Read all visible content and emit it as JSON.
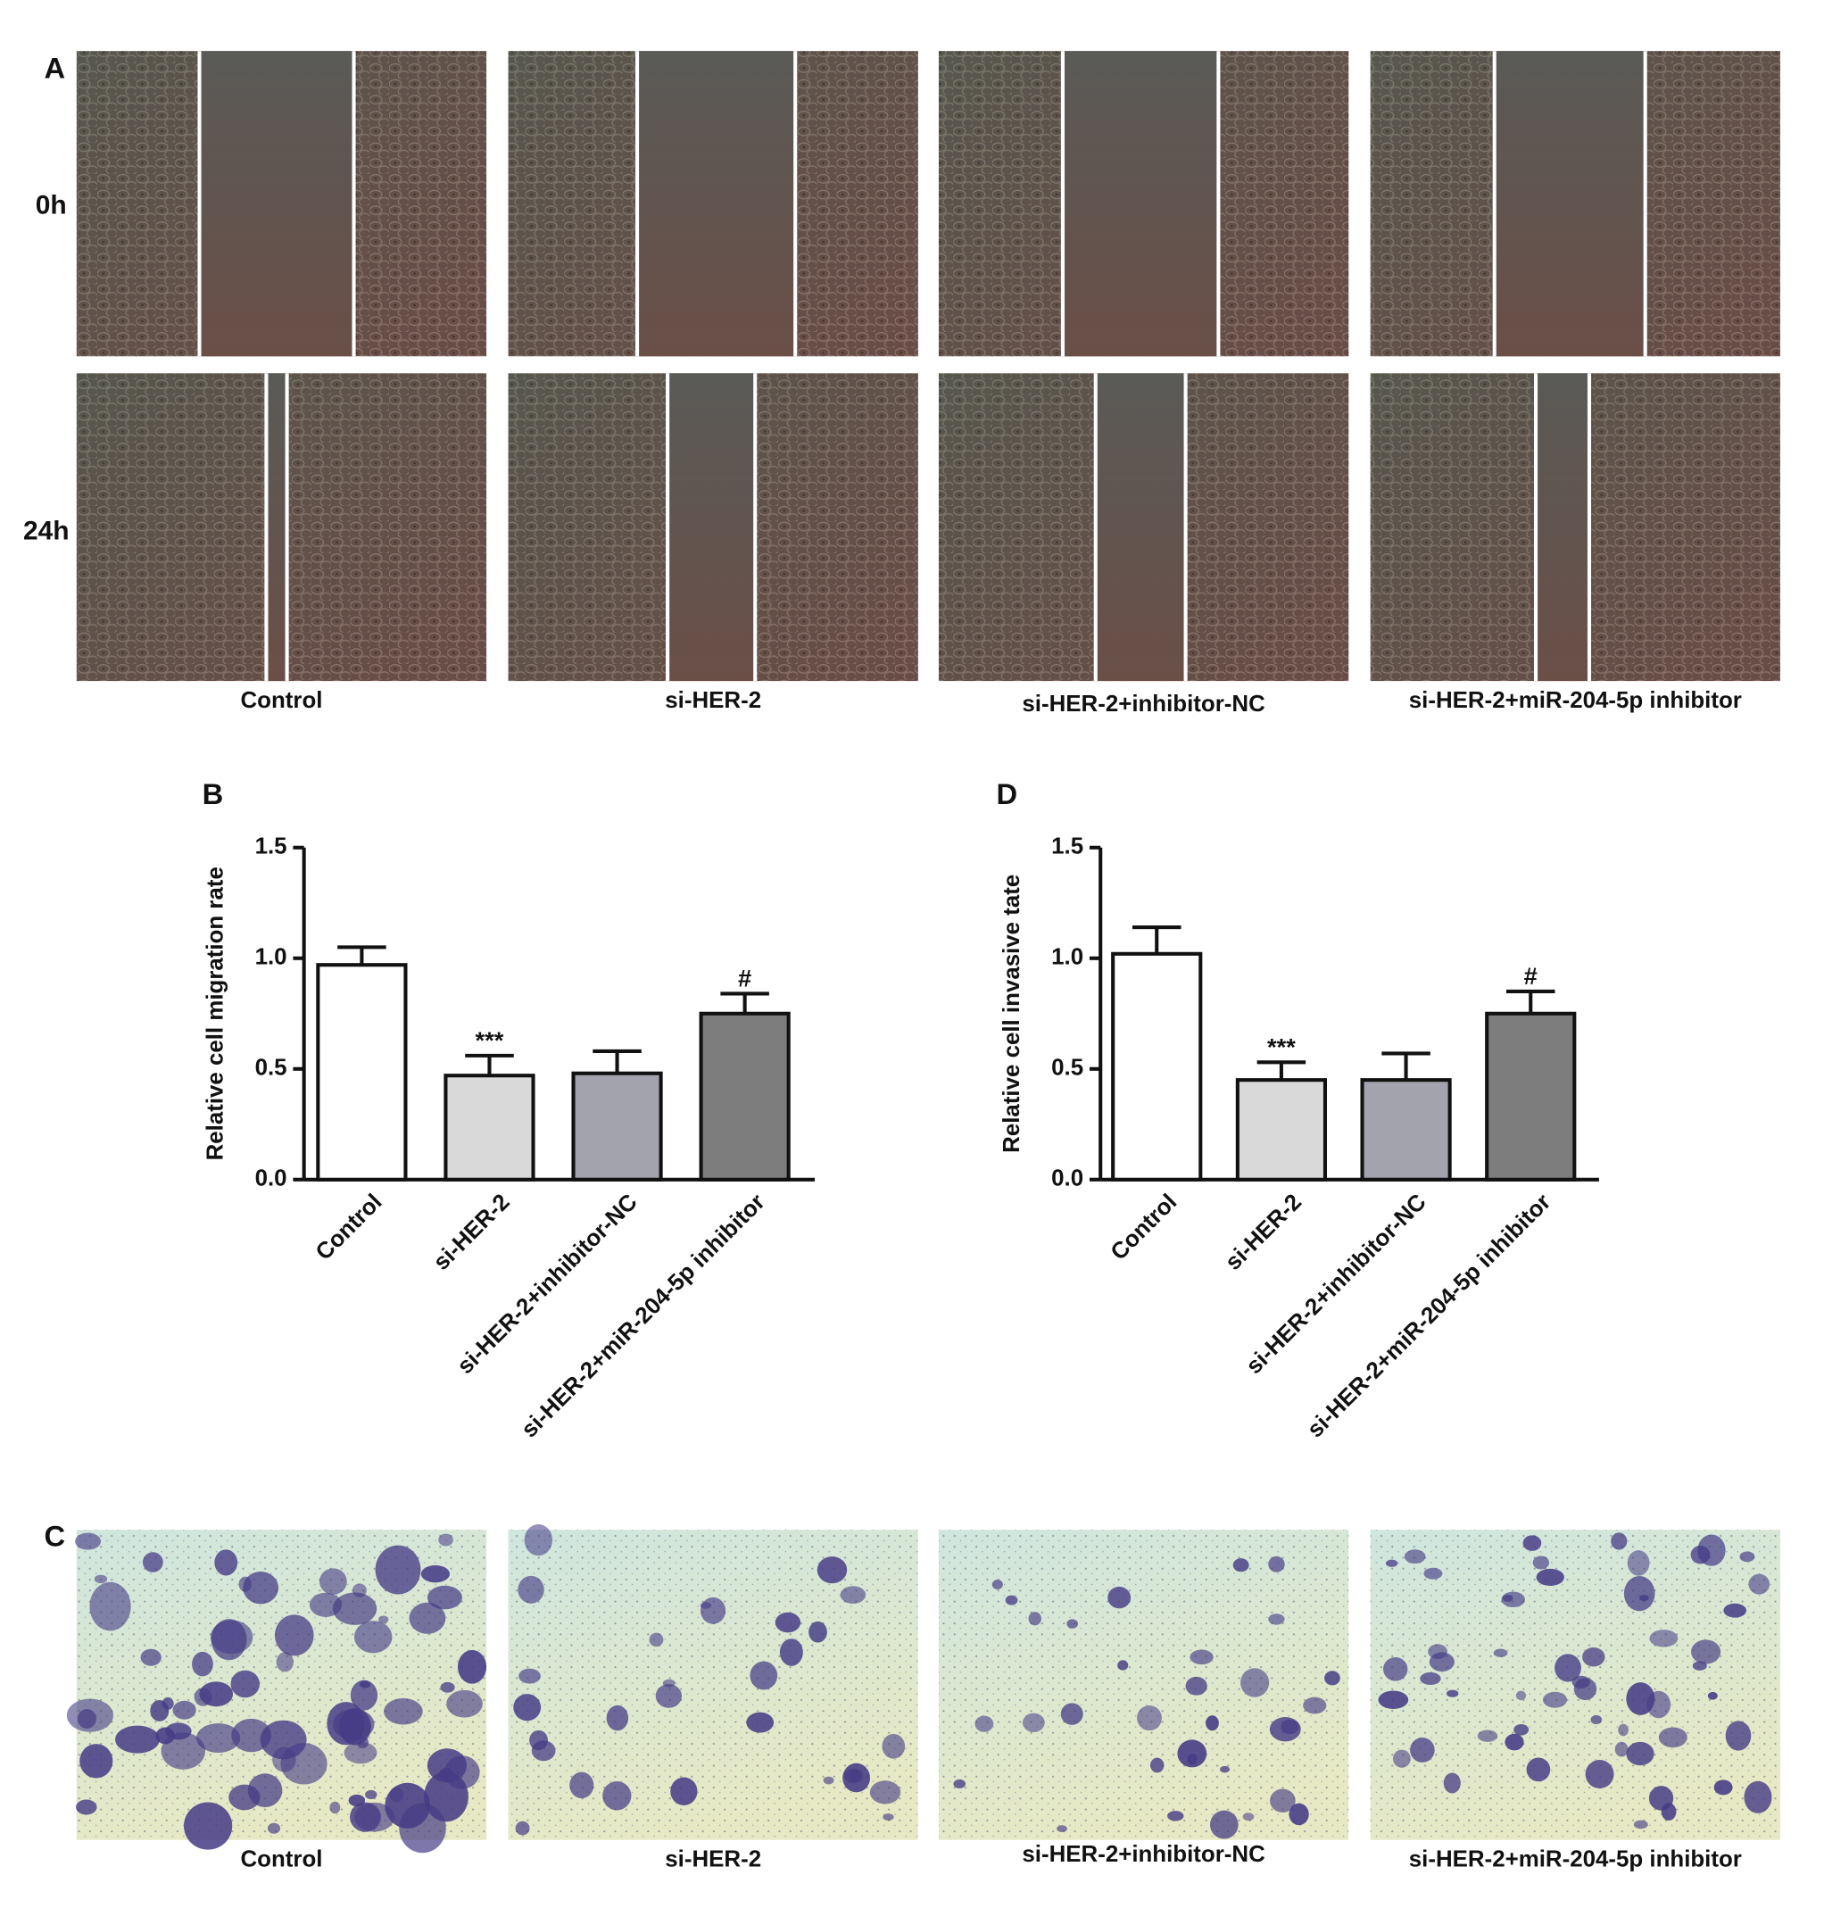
{
  "panel_a": {
    "label": "A",
    "rows": [
      "0h",
      "24h"
    ],
    "groups": [
      "Control",
      "si-HER-2",
      "si-HER-2+inhibitor-NC",
      "si-HER-2+miR-204-5p inhibitor"
    ]
  },
  "chart_data": [
    {
      "type": "bar",
      "panel_label": "B",
      "y_label": "Relative cell migration rate",
      "categories": [
        "Control",
        "si-HER-2",
        "si-HER-2+inhibitor-NC",
        "si-HER-2+miR-204-5p inhibitor"
      ],
      "values": [
        0.97,
        0.47,
        0.48,
        0.75
      ],
      "errors": [
        0.08,
        0.09,
        0.1,
        0.09
      ],
      "colors": [
        "#ffffff",
        "#d9d9d9",
        "#a3a3ad",
        "#7d7d7d"
      ],
      "significance": [
        null,
        "***",
        null,
        "#"
      ],
      "ylim": [
        0,
        1.5
      ],
      "yticks": [
        {
          "value": 0,
          "label": "0.0"
        },
        0.5,
        {
          "value": 1,
          "label": "1.0"
        },
        1.5
      ]
    },
    {
      "type": "bar",
      "panel_label": "D",
      "y_label": "Relative cell invasive tate",
      "categories": [
        "Control",
        "si-HER-2",
        "si-HER-2+inhibitor-NC",
        "si-HER-2+miR-204-5p inhibitor"
      ],
      "values": [
        1.02,
        0.45,
        0.45,
        0.75
      ],
      "errors": [
        0.12,
        0.08,
        0.12,
        0.1
      ],
      "colors": [
        "#ffffff",
        "#d9d9d9",
        "#a3a3ad",
        "#7d7d7d"
      ],
      "significance": [
        null,
        "***",
        null,
        "#"
      ],
      "ylim": [
        0,
        1.5
      ],
      "yticks": [
        {
          "value": 0,
          "label": "0.0"
        },
        0.5,
        {
          "value": 1,
          "label": "1.0"
        },
        1.5
      ]
    }
  ],
  "panel_c": {
    "label": "C",
    "groups": [
      "Control",
      "si-HER-2",
      "si-HER-2+inhibitor-NC",
      "si-HER-2+miR-204-5p inhibitor"
    ]
  }
}
